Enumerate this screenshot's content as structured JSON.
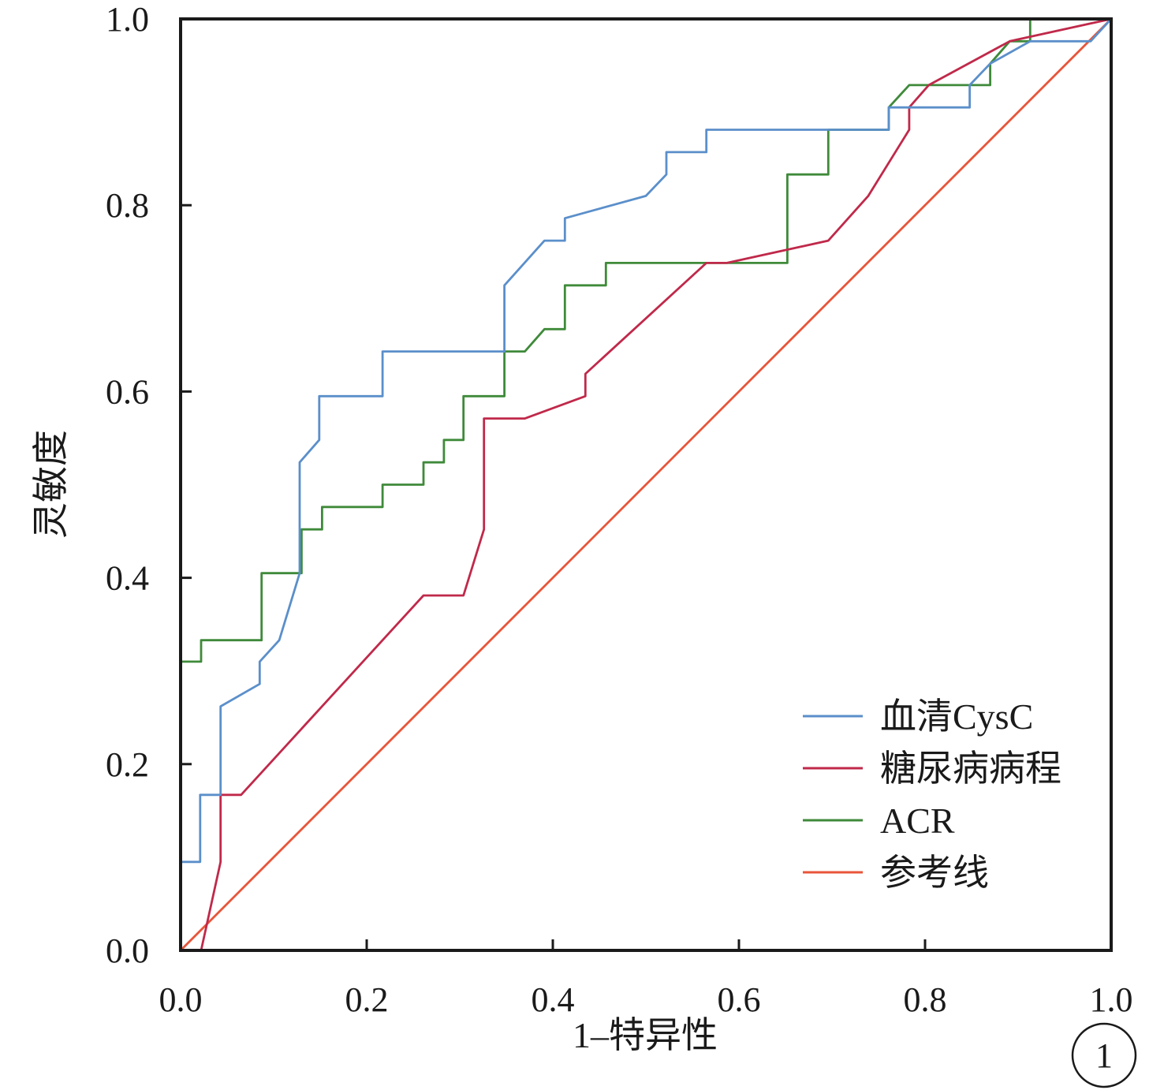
{
  "chart_data": {
    "type": "line",
    "title": "",
    "xlabel": "1–特异性",
    "ylabel": "灵敏度",
    "xlim": [
      0,
      1
    ],
    "ylim": [
      0,
      1
    ],
    "x_ticks": [
      "0.0",
      "0.2",
      "0.4",
      "0.6",
      "0.8",
      "1.0"
    ],
    "y_ticks": [
      "0.0",
      "0.2",
      "0.4",
      "0.6",
      "0.8",
      "1.0"
    ],
    "grid": false,
    "legend_position": "bottom-right",
    "panel_label": "1",
    "series": [
      {
        "name": "血清CysC",
        "color": "#5b8fca",
        "points": [
          [
            0,
            0
          ],
          [
            0,
            0.095
          ],
          [
            0.021,
            0.095
          ],
          [
            0.021,
            0.167
          ],
          [
            0.043,
            0.167
          ],
          [
            0.043,
            0.262
          ],
          [
            0.085,
            0.286
          ],
          [
            0.085,
            0.31
          ],
          [
            0.106,
            0.333
          ],
          [
            0.128,
            0.405
          ],
          [
            0.128,
            0.524
          ],
          [
            0.149,
            0.548
          ],
          [
            0.149,
            0.595
          ],
          [
            0.217,
            0.595
          ],
          [
            0.217,
            0.643
          ],
          [
            0.348,
            0.643
          ],
          [
            0.348,
            0.714
          ],
          [
            0.391,
            0.762
          ],
          [
            0.413,
            0.762
          ],
          [
            0.413,
            0.786
          ],
          [
            0.5,
            0.81
          ],
          [
            0.522,
            0.833
          ],
          [
            0.522,
            0.857
          ],
          [
            0.565,
            0.857
          ],
          [
            0.565,
            0.881
          ],
          [
            0.761,
            0.881
          ],
          [
            0.761,
            0.905
          ],
          [
            0.848,
            0.905
          ],
          [
            0.848,
            0.929
          ],
          [
            0.87,
            0.952
          ],
          [
            0.913,
            0.976
          ],
          [
            0.978,
            0.976
          ],
          [
            1,
            1
          ]
        ]
      },
      {
        "name": "糖尿病病程",
        "color": "#c0294a",
        "points": [
          [
            0,
            0
          ],
          [
            0.022,
            0
          ],
          [
            0.043,
            0.095
          ],
          [
            0.043,
            0.167
          ],
          [
            0.065,
            0.167
          ],
          [
            0.261,
            0.381
          ],
          [
            0.304,
            0.381
          ],
          [
            0.326,
            0.452
          ],
          [
            0.326,
            0.571
          ],
          [
            0.37,
            0.571
          ],
          [
            0.435,
            0.595
          ],
          [
            0.435,
            0.619
          ],
          [
            0.565,
            0.738
          ],
          [
            0.587,
            0.738
          ],
          [
            0.696,
            0.762
          ],
          [
            0.739,
            0.81
          ],
          [
            0.783,
            0.881
          ],
          [
            0.783,
            0.905
          ],
          [
            0.804,
            0.929
          ],
          [
            0.891,
            0.976
          ],
          [
            1,
            1
          ]
        ]
      },
      {
        "name": "ACR",
        "color": "#3f8a3a",
        "points": [
          [
            0,
            0
          ],
          [
            0,
            0.31
          ],
          [
            0.022,
            0.31
          ],
          [
            0.022,
            0.333
          ],
          [
            0.087,
            0.333
          ],
          [
            0.087,
            0.405
          ],
          [
            0.13,
            0.405
          ],
          [
            0.13,
            0.452
          ],
          [
            0.152,
            0.452
          ],
          [
            0.152,
            0.476
          ],
          [
            0.217,
            0.476
          ],
          [
            0.217,
            0.5
          ],
          [
            0.261,
            0.5
          ],
          [
            0.261,
            0.524
          ],
          [
            0.283,
            0.524
          ],
          [
            0.283,
            0.548
          ],
          [
            0.304,
            0.548
          ],
          [
            0.304,
            0.595
          ],
          [
            0.348,
            0.595
          ],
          [
            0.348,
            0.643
          ],
          [
            0.37,
            0.643
          ],
          [
            0.391,
            0.667
          ],
          [
            0.413,
            0.667
          ],
          [
            0.413,
            0.714
          ],
          [
            0.457,
            0.714
          ],
          [
            0.457,
            0.738
          ],
          [
            0.652,
            0.738
          ],
          [
            0.652,
            0.833
          ],
          [
            0.696,
            0.833
          ],
          [
            0.696,
            0.881
          ],
          [
            0.761,
            0.881
          ],
          [
            0.761,
            0.905
          ],
          [
            0.783,
            0.929
          ],
          [
            0.87,
            0.929
          ],
          [
            0.87,
            0.952
          ],
          [
            0.891,
            0.976
          ],
          [
            0.913,
            0.976
          ],
          [
            0.913,
            1
          ],
          [
            1,
            1
          ]
        ]
      },
      {
        "name": "参考线",
        "color": "#e8553a",
        "points": [
          [
            0,
            0
          ],
          [
            1,
            1
          ]
        ]
      }
    ]
  }
}
